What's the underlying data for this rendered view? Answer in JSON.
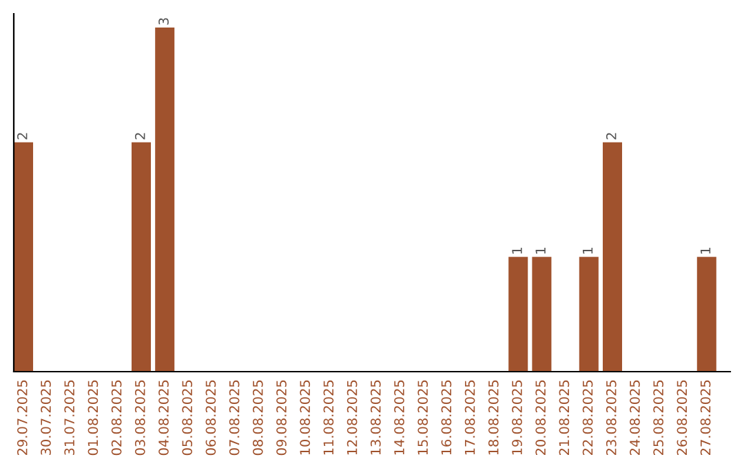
{
  "chart_data": {
    "type": "bar",
    "categories": [
      "29.07.2025",
      "30.07.2025",
      "31.07.2025",
      "01.08.2025",
      "02.08.2025",
      "03.08.2025",
      "04.08.2025",
      "05.08.2025",
      "06.08.2025",
      "07.08.2025",
      "08.08.2025",
      "09.08.2025",
      "10.08.2025",
      "11.08.2025",
      "12.08.2025",
      "13.08.2025",
      "14.08.2025",
      "15.08.2025",
      "16.08.2025",
      "17.08.2025",
      "18.08.2025",
      "19.08.2025",
      "20.08.2025",
      "21.08.2025",
      "22.08.2025",
      "23.08.2025",
      "24.08.2025",
      "25.08.2025",
      "26.08.2025",
      "27.08.2025"
    ],
    "values": [
      2,
      0,
      0,
      0,
      0,
      2,
      3,
      0,
      0,
      0,
      0,
      0,
      0,
      0,
      0,
      0,
      0,
      0,
      0,
      0,
      0,
      1,
      1,
      0,
      1,
      2,
      0,
      0,
      0,
      1
    ],
    "value_labels": [
      "2",
      null,
      null,
      null,
      null,
      "2",
      "3",
      null,
      null,
      null,
      null,
      null,
      null,
      null,
      null,
      null,
      null,
      null,
      null,
      null,
      null,
      "1",
      "1",
      null,
      "1",
      "2",
      null,
      null,
      null,
      "1"
    ],
    "color": "#a0522d",
    "grid": false,
    "legend": false,
    "tick_labels": "x"
  }
}
